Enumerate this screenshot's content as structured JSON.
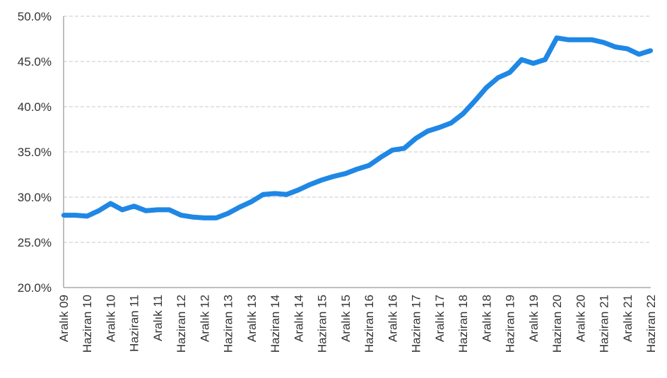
{
  "chart_data": {
    "type": "line",
    "title": "",
    "xlabel": "",
    "ylabel": "",
    "ylim": [
      20,
      50
    ],
    "yticks": [
      "20.0%",
      "25.0%",
      "30.0%",
      "35.0%",
      "40.0%",
      "45.0%",
      "50.0%"
    ],
    "ytick_values": [
      20,
      25,
      30,
      35,
      40,
      45,
      50
    ],
    "xticks": [
      "Aralık 09",
      "Haziran 10",
      "Aralık 10",
      "Haziran 11",
      "Aralık 11",
      "Haziran 12",
      "Aralık 12",
      "Haziran 13",
      "Aralık 13",
      "Haziran 14",
      "Aralık 14",
      "Haziran 15",
      "Aralık 15",
      "Haziran 16",
      "Aralık 16",
      "Haziran 17",
      "Aralık 17",
      "Haziran 18",
      "Aralık 18",
      "Haziran 19",
      "Aralık 19",
      "Haziran 20",
      "Aralık 20",
      "Haziran 21",
      "Aralık 21",
      "Haziran 22"
    ],
    "grid": true,
    "line_color": "#1f87e5",
    "series": [
      {
        "values": [
          28.0,
          28.0,
          27.9,
          28.5,
          29.3,
          28.6,
          29.0,
          28.5,
          28.6,
          28.6,
          28.0,
          27.8,
          27.7,
          27.7,
          28.2,
          28.9,
          29.5,
          30.3,
          30.4,
          30.3,
          30.8,
          31.4,
          31.9,
          32.3,
          32.6,
          33.1,
          33.5,
          34.4,
          35.2,
          35.4,
          36.5,
          37.3,
          37.7,
          38.2,
          39.2,
          40.6,
          42.1,
          43.2,
          43.8,
          45.2,
          44.8,
          45.2,
          47.6,
          47.4,
          47.4,
          47.4,
          47.1,
          46.6,
          46.4,
          45.8,
          46.2
        ]
      }
    ]
  }
}
